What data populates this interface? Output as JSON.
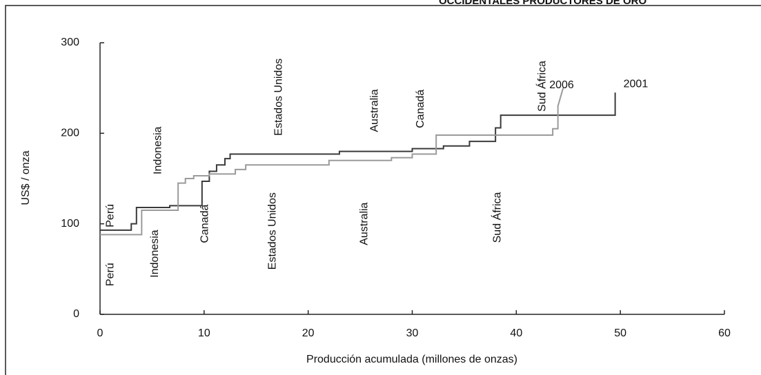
{
  "chart_data": {
    "type": "line",
    "title": "OCCIDENTALES PRODUCTORES DE ORO",
    "x_label": "Producción acumulada (millones de onzas)",
    "y_label": "US$ / onza",
    "xlim": [
      0,
      60
    ],
    "xticks": [
      0,
      10,
      20,
      30,
      40,
      50,
      60
    ],
    "ylim": [
      0,
      300
    ],
    "yticks": [
      0,
      100,
      200,
      300
    ],
    "series": [
      {
        "name": "2001",
        "color": "#3a3a3a",
        "x": [
          0,
          3,
          3,
          3.5,
          3.5,
          6.7,
          6.7,
          9.8,
          9.8,
          10.5,
          10.5,
          11.2,
          11.2,
          12,
          12,
          12.5,
          12.5,
          23,
          23,
          30,
          30,
          33,
          33,
          35.5,
          35.5,
          38,
          38,
          38.5,
          38.5,
          49.5,
          49.5
        ],
        "y": [
          93,
          93,
          100,
          100,
          118,
          118,
          120,
          120,
          147,
          147,
          158,
          158,
          165,
          165,
          172,
          172,
          177,
          177,
          180,
          180,
          183,
          183,
          186,
          186,
          191,
          191,
          206,
          206,
          220,
          220,
          245
        ]
      },
      {
        "name": "2006",
        "color": "#9a9a9a",
        "x": [
          0,
          4,
          4,
          7.5,
          7.5,
          8.2,
          8.2,
          9,
          9,
          10.5,
          10.5,
          13,
          13,
          14,
          14,
          22,
          22,
          28,
          28,
          30,
          30,
          32.3,
          32.3,
          43.5,
          43.5,
          44,
          44,
          44.5
        ],
        "y": [
          88,
          88,
          115,
          115,
          145,
          145,
          150,
          150,
          153,
          153,
          155,
          155,
          160,
          160,
          165,
          165,
          170,
          170,
          173,
          173,
          177,
          177,
          198,
          198,
          205,
          205,
          230,
          250
        ]
      }
    ],
    "annotations": [
      "Perú",
      "Indonesia",
      "Estados Unidos",
      "Australia",
      "Canadá",
      "Sud África",
      "Perú",
      "Indonesia",
      "Canadá",
      "Estados Unidos",
      "Australia",
      "Sud África"
    ]
  }
}
